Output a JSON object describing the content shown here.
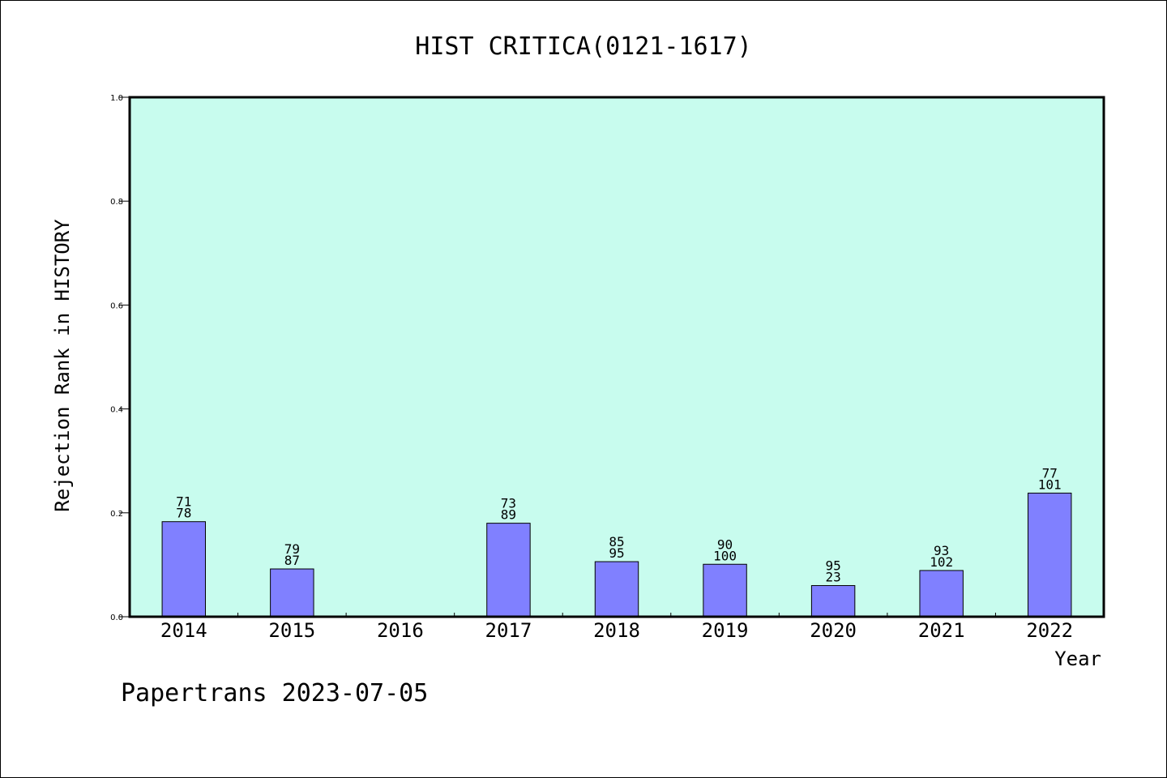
{
  "chart_data": {
    "type": "bar",
    "title": "HIST CRITICA(0121-1617)",
    "xlabel": "Year",
    "ylabel": "Rejection Rank in HISTORY",
    "categories": [
      "2014",
      "2015",
      "2016",
      "2017",
      "2018",
      "2019",
      "2020",
      "2021",
      "2022"
    ],
    "values": [
      0.183,
      0.092,
      null,
      0.18,
      0.106,
      0.101,
      0.06,
      0.089,
      0.238
    ],
    "bar_labels": [
      [
        "71",
        "78"
      ],
      [
        "79",
        "87"
      ],
      null,
      [
        "73",
        "89"
      ],
      [
        "85",
        "95"
      ],
      [
        "90",
        "100"
      ],
      [
        "95",
        "23"
      ],
      [
        "93",
        "102"
      ],
      [
        "77",
        "101"
      ]
    ],
    "ylim": [
      0,
      1.0
    ],
    "yticks": [
      "0.0",
      "0.2",
      "0.4",
      "0.6",
      "0.8",
      "1.0"
    ],
    "grid": false,
    "legend": "none",
    "colors": {
      "plot_background": "#c8fcee",
      "bar_fill": "#8080ff",
      "bar_stroke": "#000000"
    }
  },
  "footer": {
    "text": "Papertrans 2023-07-05"
  }
}
